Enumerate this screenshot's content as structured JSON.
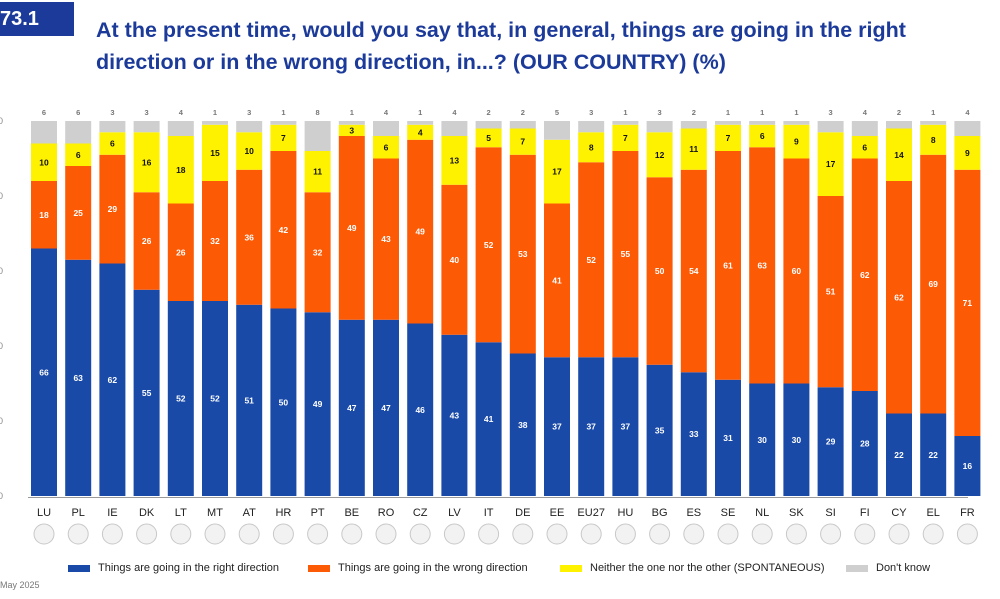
{
  "header": {
    "label": "73.1",
    "title": "At the present time, would you say that, in general, things are going in the right direction or in the wrong direction, in...? (OUR COUNTRY) (%)"
  },
  "footnote": "May 2025",
  "chart_data": {
    "type": "bar",
    "stacked": true,
    "categories": [
      "LU",
      "PL",
      "IE",
      "DK",
      "LT",
      "MT",
      "AT",
      "HR",
      "PT",
      "BE",
      "RO",
      "CZ",
      "LV",
      "IT",
      "DE",
      "EE",
      "EU27",
      "HU",
      "BG",
      "ES",
      "SE",
      "NL",
      "SK",
      "SI",
      "FI",
      "CY",
      "EL",
      "FR"
    ],
    "series": [
      {
        "name": "Things are going in the right direction",
        "color": "#1a4aa8",
        "values": [
          66,
          63,
          62,
          55,
          52,
          52,
          51,
          50,
          49,
          47,
          47,
          46,
          43,
          41,
          38,
          37,
          37,
          37,
          35,
          33,
          31,
          30,
          30,
          29,
          28,
          22,
          22,
          16
        ]
      },
      {
        "name": "Things are going in the wrong direction",
        "color": "#fd5a06",
        "values": [
          18,
          25,
          29,
          26,
          26,
          32,
          36,
          42,
          32,
          49,
          43,
          49,
          40,
          52,
          53,
          41,
          52,
          55,
          50,
          54,
          61,
          63,
          60,
          51,
          62,
          62,
          69,
          71
        ]
      },
      {
        "name": "Neither the one nor the other (SPONTANEOUS)",
        "color": "#fff200",
        "values": [
          10,
          6,
          6,
          16,
          18,
          15,
          10,
          7,
          11,
          3,
          6,
          4,
          13,
          5,
          7,
          17,
          8,
          7,
          12,
          11,
          7,
          6,
          9,
          17,
          6,
          14,
          8,
          9
        ]
      },
      {
        "name": "Don't know",
        "color": "#cfcfcf",
        "values": [
          6,
          6,
          3,
          3,
          4,
          1,
          3,
          1,
          8,
          1,
          4,
          1,
          4,
          2,
          2,
          5,
          3,
          1,
          3,
          2,
          1,
          1,
          1,
          3,
          4,
          2,
          1,
          4
        ]
      }
    ],
    "ylim": [
      0,
      100
    ],
    "yticks": [
      "0",
      "0",
      "0",
      "0",
      "0",
      "0"
    ]
  }
}
